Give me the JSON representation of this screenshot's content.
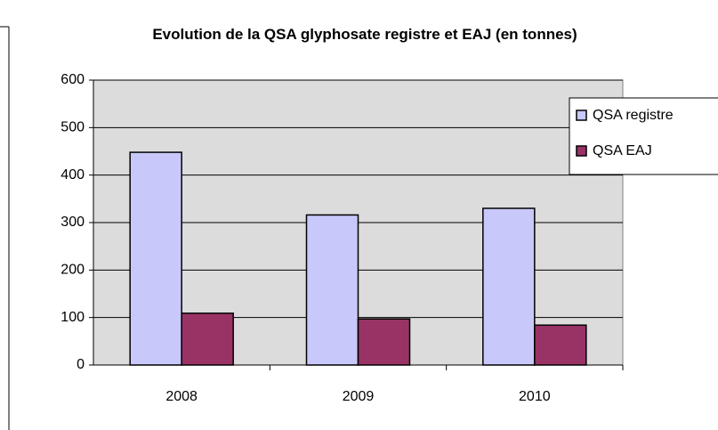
{
  "chart_data": {
    "type": "bar",
    "title": "Evolution de la QSA glyphosate registre et EAJ (en tonnes)",
    "categories": [
      "2008",
      "2009",
      "2010"
    ],
    "series": [
      {
        "name": "QSA registre",
        "color": "#c8c8fa",
        "values": [
          448,
          316,
          330
        ]
      },
      {
        "name": "QSA EAJ",
        "color": "#993366",
        "values": [
          109,
          97,
          84
        ]
      }
    ],
    "ylim": [
      0,
      600
    ],
    "yticks": [
      0,
      100,
      200,
      300,
      400,
      500,
      600
    ],
    "grid": true,
    "legend": "right"
  }
}
